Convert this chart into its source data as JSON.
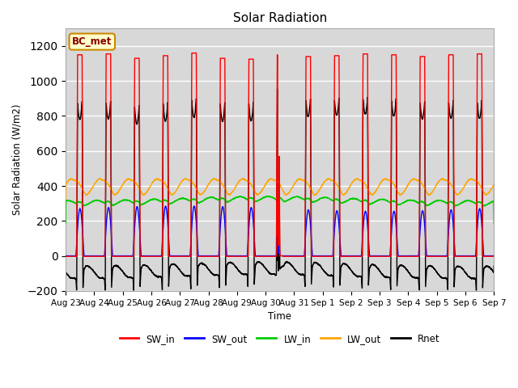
{
  "title": "Solar Radiation",
  "ylabel": "Solar Radiation (W/m2)",
  "xlabel": "Time",
  "ylim": [
    -200,
    1300
  ],
  "yticks": [
    -200,
    0,
    200,
    400,
    600,
    800,
    1000,
    1200
  ],
  "n_days": 15,
  "ppd": 480,
  "colors": {
    "SW_in": "#ff0000",
    "SW_out": "#0000ff",
    "LW_in": "#00cc00",
    "LW_out": "#ffa500",
    "Rnet": "#000000"
  },
  "legend_label": "BC_met",
  "legend_box_color": "#ffffcc",
  "legend_box_edge": "#cc8800",
  "background_color": "#d8d8d8",
  "grid_color": "#ffffff"
}
